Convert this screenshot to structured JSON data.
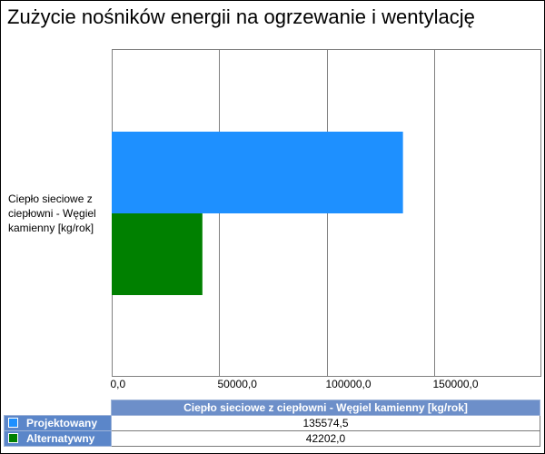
{
  "chart_data": {
    "type": "bar",
    "orientation": "horizontal",
    "title": "Zużycie nośników energii na ogrzewanie i wentylację",
    "categories": [
      "Ciepło sieciowe z ciepłowni - Węgiel kamienny [kg/rok]"
    ],
    "series": [
      {
        "name": "Projektowany",
        "values": [
          135574.5
        ],
        "color": "#1e90ff"
      },
      {
        "name": "Alternatywny",
        "values": [
          42202.0
        ],
        "color": "#008000"
      }
    ],
    "xlim": [
      0,
      200000
    ],
    "xticks": [
      0,
      50000,
      100000,
      150000
    ],
    "xtick_labels": [
      "0,0",
      "50000,0",
      "100000,0",
      "150000,0"
    ],
    "grid": true,
    "table": {
      "header": "Ciepło sieciowe z ciepłowni - Węgiel kamienny [kg/rok]",
      "rows": [
        {
          "label": "Projektowany",
          "value": "135574,5",
          "color": "#1e90ff"
        },
        {
          "label": "Alternatywny",
          "value": "42202,0",
          "color": "#008000"
        }
      ]
    }
  }
}
